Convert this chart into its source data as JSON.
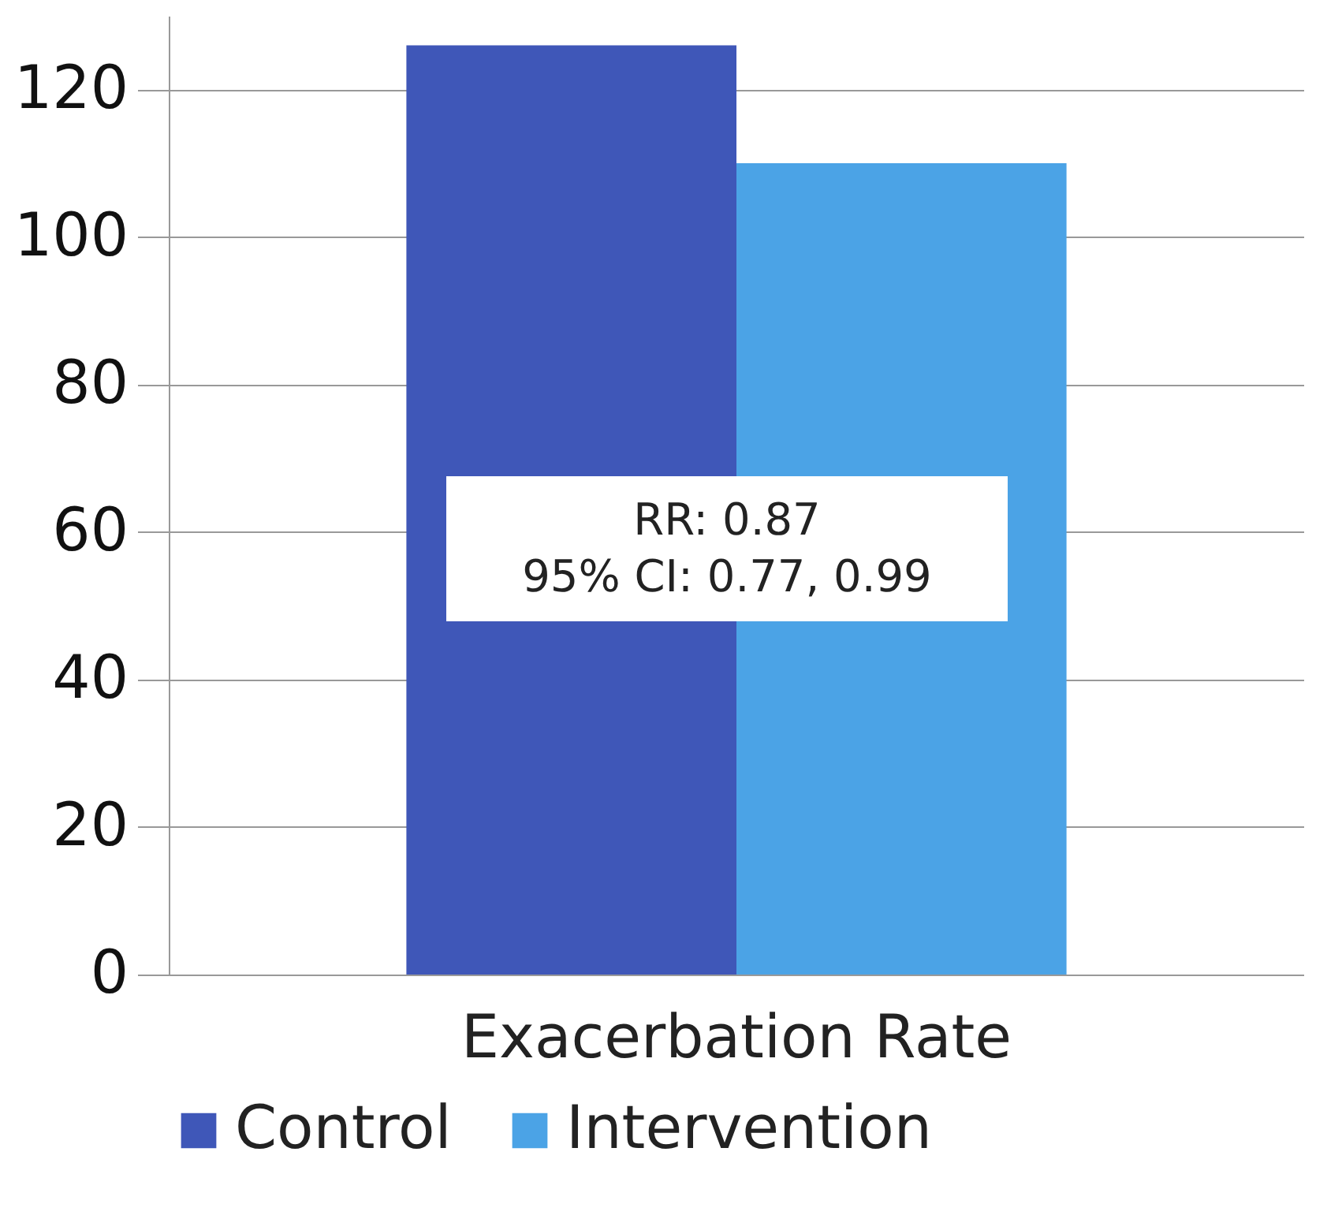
{
  "chart_data": {
    "type": "bar",
    "categories": [
      "Exacerbation Rate"
    ],
    "series": [
      {
        "name": "Control",
        "color": "#3f57b8",
        "values": [
          126
        ]
      },
      {
        "name": "Intervention",
        "color": "#4ba3e6",
        "values": [
          110
        ]
      }
    ],
    "ylim": [
      0,
      130
    ],
    "yticks": [
      0,
      20,
      40,
      60,
      80,
      100,
      120
    ],
    "grid": "y",
    "legend": "bottom",
    "annotations": [
      "RR: 0.87",
      "95% CI: 0.77, 0.99"
    ]
  }
}
